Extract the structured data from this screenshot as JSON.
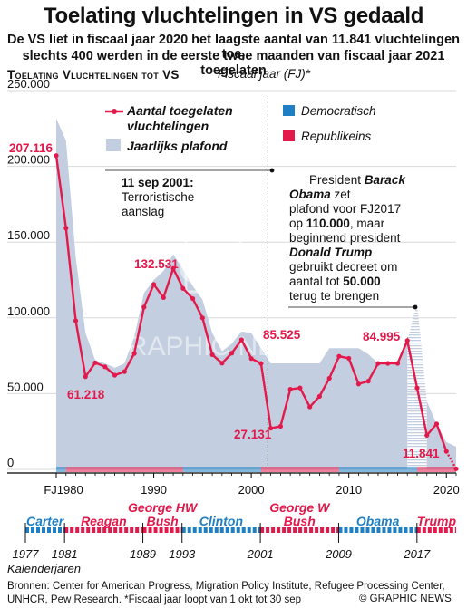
{
  "title": "Toelating vluchtelingen in VS gedaald",
  "subtitle_line1": "De VS liet in fiscaal jaar 2020 het laagste aantal van 11.841 vluchtelingen toe,",
  "subtitle_line2": "slechts 400 werden in de eerste twee maanden van fiscaal jaar 2021 toegelaten",
  "chart_heading": "Toelating Vluchtelingen tot VS",
  "chart_heading_note": "Fiscaal jaar (FJ)*",
  "footer_line1": "Bronnen: Center for American Progress, Migration Policy Institute, Refugee Processing Center,",
  "footer_line2": "UNHCR, Pew Research. *Fiscaal jaar loopt van 1 okt tot 30 sep",
  "credit": "© GRAPHIC NEWS",
  "watermark": "GRAPHIC NEWS",
  "watermark_logo": "GN",
  "colors": {
    "admitted": "#e3194b",
    "ceiling": "#c3cfe0",
    "democratic": "#1f7fc4",
    "republican": "#e3194b",
    "axis": "#000000"
  },
  "chart_data": {
    "type": "line",
    "x": [
      1980,
      1981,
      1982,
      1983,
      1984,
      1985,
      1986,
      1987,
      1988,
      1989,
      1990,
      1991,
      1992,
      1993,
      1994,
      1995,
      1996,
      1997,
      1998,
      1999,
      2000,
      2001,
      2002,
      2003,
      2004,
      2005,
      2006,
      2007,
      2008,
      2009,
      2010,
      2011,
      2012,
      2013,
      2014,
      2015,
      2016,
      2017,
      2018,
      2019,
      2020,
      2021
    ],
    "series": [
      {
        "name": "Aantal toegelaten vluchtelingen",
        "values": [
          207116,
          159252,
          98096,
          61218,
          70393,
          67704,
          62146,
          64528,
          76483,
          107070,
          122066,
          113389,
          132531,
          119448,
          112682,
          99974,
          75682,
          70085,
          76712,
          85525,
          73147,
          69886,
          27131,
          28422,
          52873,
          53738,
          41223,
          48218,
          60108,
          74652,
          73311,
          56384,
          58238,
          69926,
          69987,
          69933,
          84995,
          53716,
          22491,
          30000,
          11841,
          400
        ]
      },
      {
        "name": "Jaarlijks plafond",
        "values": [
          231700,
          217000,
          140000,
          90000,
          72000,
          70000,
          67000,
          70000,
          87500,
          116500,
          125000,
          131000,
          142000,
          132000,
          121000,
          112000,
          90000,
          78000,
          83000,
          91000,
          90000,
          80000,
          70000,
          70000,
          70000,
          70000,
          70000,
          70000,
          80000,
          80000,
          80000,
          80000,
          76000,
          70000,
          70000,
          70000,
          85000,
          110000,
          45000,
          30000,
          18000,
          15000
        ]
      }
    ],
    "ylim": [
      0,
      250000
    ],
    "xlim": [
      1980,
      2021
    ],
    "yticks": [
      "0",
      "50.000",
      "100.000",
      "150.000",
      "200.000",
      "250.000"
    ],
    "xticks": [
      "FJ1980",
      "1990",
      "2000",
      "2010",
      "2020"
    ],
    "data_labels": [
      {
        "x": 1980,
        "text": "207.116"
      },
      {
        "x": 1983,
        "text": "61.218"
      },
      {
        "x": 1992,
        "text": "132.531"
      },
      {
        "x": 1999,
        "text": "85.525"
      },
      {
        "x": 2002,
        "text": "27.131"
      },
      {
        "x": 2016,
        "text": "84.995"
      },
      {
        "x": 2020,
        "text": "11.841"
      }
    ],
    "legend": [
      {
        "label_line1": "Aantal toegelaten",
        "label_line2": "vluchtelingen",
        "kind": "line"
      },
      {
        "label_line1": "Jaarlijks plafond",
        "kind": "area"
      },
      {
        "label_line1": "Democratisch",
        "kind": "dem"
      },
      {
        "label_line1": "Republikeins",
        "kind": "rep"
      }
    ],
    "annotations": {
      "sep11_line1": "11 sep 2001:",
      "sep11_line2": "Terroristische",
      "sep11_line3": "aanslag",
      "obama_line1_a": "President ",
      "obama_line1_b": "Barack",
      "obama_line2_a": "Obama",
      "obama_line2_b": " zet",
      "obama_line3": "plafond voor FJ2017",
      "obama_line4_a": "op ",
      "obama_line4_b": "110.000",
      "obama_line4_c": ", maar",
      "obama_line5": "beginnend president",
      "obama_line6": "Donald Trump",
      "obama_line7": "gebruikt decreet om",
      "obama_line8": "aantal tot ",
      "obama_line8_b": "50.000",
      "obama_line9": "terug te brengen"
    },
    "party_strip": [
      {
        "from": 1980,
        "to": 1981,
        "party": "dem"
      },
      {
        "from": 1981,
        "to": 1993,
        "party": "rep"
      },
      {
        "from": 1993,
        "to": 2001,
        "party": "dem"
      },
      {
        "from": 2001,
        "to": 2009,
        "party": "rep"
      },
      {
        "from": 2009,
        "to": 2017,
        "party": "dem"
      },
      {
        "from": 2017,
        "to": 2021,
        "party": "rep"
      }
    ]
  },
  "presidents": [
    {
      "name": "Carter",
      "party": "dem",
      "from": 1977,
      "to": 1981
    },
    {
      "name": "Reagan",
      "party": "rep",
      "from": 1981,
      "to": 1989
    },
    {
      "name": "George HW",
      "name2": "Bush",
      "party": "rep",
      "from": 1989,
      "to": 1993
    },
    {
      "name": "Clinton",
      "party": "dem",
      "from": 1993,
      "to": 2001
    },
    {
      "name": "George W",
      "name2": "Bush",
      "party": "rep",
      "from": 2001,
      "to": 2009
    },
    {
      "name": "Obama",
      "party": "dem",
      "from": 2009,
      "to": 2017
    },
    {
      "name": "Trump",
      "party": "rep",
      "from": 2017,
      "to": 2021
    }
  ],
  "timeline_ticks": [
    "1977",
    "1981",
    "1989",
    "1993",
    "2001",
    "2009",
    "2017"
  ],
  "timeline_label": "Kalenderjaren"
}
